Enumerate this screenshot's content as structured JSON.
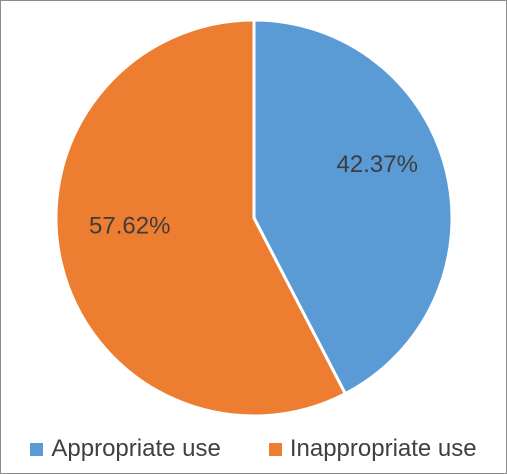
{
  "chart_data": {
    "type": "pie",
    "title": "",
    "categories": [
      "Appropriate use",
      "Inappropriate use"
    ],
    "values": [
      42.37,
      57.62
    ],
    "data_labels": [
      "42.37%",
      "57.62%"
    ],
    "colors": [
      "#5b9bd5",
      "#ed7d31"
    ],
    "start_angle_deg": 0,
    "direction": "clockwise",
    "legend_placement": "bottom"
  }
}
